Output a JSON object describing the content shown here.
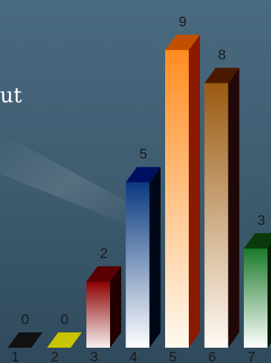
{
  "partial_text": "ut",
  "chart_data": {
    "type": "bar",
    "categories": [
      "1",
      "2",
      "3",
      "4",
      "5",
      "6",
      "7"
    ],
    "values": [
      0,
      0,
      2,
      5,
      9,
      8,
      3
    ],
    "data_labels": [
      "0",
      "0",
      "2",
      "5",
      "9",
      "8",
      "3"
    ],
    "ylim": [
      0,
      9
    ],
    "grid": false,
    "legend": "none",
    "colors": {
      "background": "#3d5a6e",
      "label": "#1a1a1a",
      "bars": [
        {
          "top": "#111111",
          "front_top": "#111111",
          "front_bottom": "#111111",
          "side": "#050505"
        },
        {
          "top": "#c8c400",
          "front_top": "#c8c400",
          "front_bottom": "#c8c400",
          "side": "#8a8800"
        },
        {
          "top": "#5a0000",
          "front_top": "#8b0000",
          "front_bottom": "#f7f0f0",
          "side": "#200000"
        },
        {
          "top": "#001060",
          "front_top": "#0a3a80",
          "front_bottom": "#ffffff",
          "side": "#000818"
        },
        {
          "top": "#c05000",
          "front_top": "#ff8c20",
          "front_bottom": "#fffaf0",
          "side": "#8a1a00"
        },
        {
          "top": "#4a1a00",
          "front_top": "#9a5a10",
          "front_bottom": "#fffaf5",
          "side": "#200808"
        },
        {
          "top": "#0a3a0a",
          "front_top": "#1a7a2a",
          "front_bottom": "#ffffff",
          "side": "#051a05"
        }
      ]
    }
  }
}
